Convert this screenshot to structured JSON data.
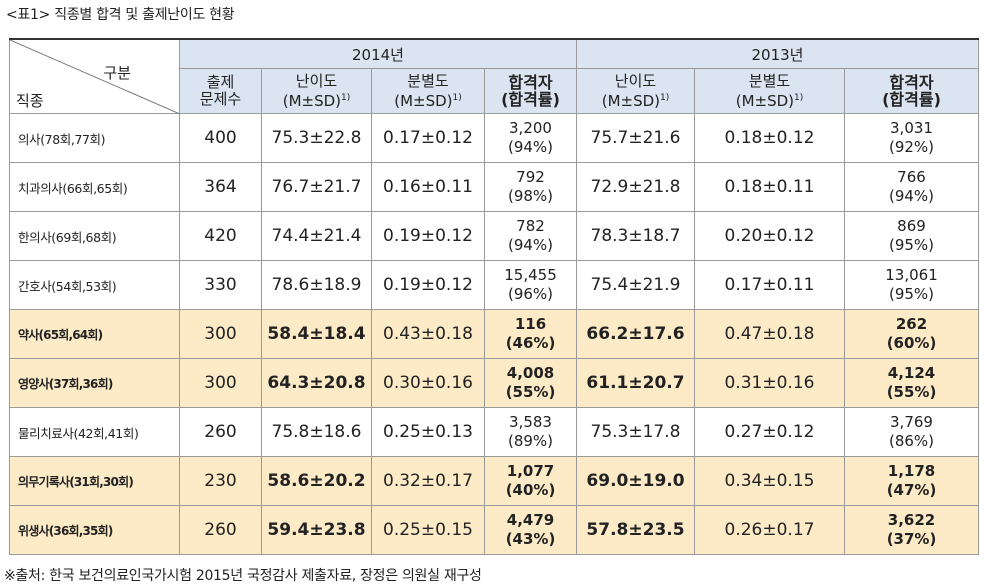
{
  "caption": "<표1> 직종별 합격 및 출제난이도 현황",
  "header": {
    "corner_top": "구분",
    "corner_bottom": "직종",
    "year_2014": "2014년",
    "year_2013": "2013년",
    "count_line1": "출제",
    "count_line2": "문제수",
    "difficulty": "난이도",
    "discrimination": "분별도",
    "msd": "(M±SD)",
    "sup": "1)",
    "pass_line1": "합격자",
    "pass_line2": "(합격률)"
  },
  "rows": [
    {
      "name": "의사(78회,77회)",
      "count": "400",
      "diff14": "75.3±22.8",
      "disc14": "0.17±0.12",
      "pass14": "3,200",
      "rate14": "(94%)",
      "diff13": "75.7±21.6",
      "disc13": "0.18±0.12",
      "pass13": "3,031",
      "rate13": "(92%)"
    },
    {
      "name": "치과의사(66회,65회)",
      "count": "364",
      "diff14": "76.7±21.7",
      "disc14": "0.16±0.11",
      "pass14": "792",
      "rate14": "(98%)",
      "diff13": "72.9±21.8",
      "disc13": "0.18±0.11",
      "pass13": "766",
      "rate13": "(94%)"
    },
    {
      "name": "한의사(69회,68회)",
      "count": "420",
      "diff14": "74.4±21.4",
      "disc14": "0.19±0.12",
      "pass14": "782",
      "rate14": "(94%)",
      "diff13": "78.3±18.7",
      "disc13": "0.20±0.12",
      "pass13": "869",
      "rate13": "(95%)"
    },
    {
      "name": "간호사(54회,53회)",
      "count": "330",
      "diff14": "78.6±18.9",
      "disc14": "0.19±0.12",
      "pass14": "15,455",
      "rate14": "(96%)",
      "diff13": "75.4±21.9",
      "disc13": "0.17±0.11",
      "pass13": "13,061",
      "rate13": "(95%)"
    },
    {
      "name": "약사(65회,64회)",
      "count": "300",
      "diff14": "58.4±18.4",
      "disc14": "0.43±0.18",
      "pass14": "116",
      "rate14": "(46%)",
      "diff13": "66.2±17.6",
      "disc13": "0.47±0.18",
      "pass13": "262",
      "rate13": "(60%)"
    },
    {
      "name": "영양사(37회,36회)",
      "count": "300",
      "diff14": "64.3±20.8",
      "disc14": "0.30±0.16",
      "pass14": "4,008",
      "rate14": "(55%)",
      "diff13": "61.1±20.7",
      "disc13": "0.31±0.16",
      "pass13": "4,124",
      "rate13": "(55%)"
    },
    {
      "name": "물리치료사(42회,41회)",
      "count": "260",
      "diff14": "75.8±18.6",
      "disc14": "0.25±0.13",
      "pass14": "3,583",
      "rate14": "(89%)",
      "diff13": "75.3±17.8",
      "disc13": "0.27±0.12",
      "pass13": "3,769",
      "rate13": "(86%)"
    },
    {
      "name": "의무기록사(31회,30회)",
      "count": "230",
      "diff14": "58.6±20.2",
      "disc14": "0.32±0.17",
      "pass14": "1,077",
      "rate14": "(40%)",
      "diff13": "69.0±19.0",
      "disc13": "0.34±0.15",
      "pass13": "1,178",
      "rate13": "(47%)"
    },
    {
      "name": "위생사(36회,35회)",
      "count": "260",
      "diff14": "59.4±23.8",
      "disc14": "0.25±0.15",
      "pass14": "4,479",
      "rate14": "(43%)",
      "diff13": "57.8±23.5",
      "disc13": "0.26±0.17",
      "pass13": "3,622",
      "rate13": "(37%)"
    }
  ],
  "highlight_color": "#fdebc8",
  "header_color": "#dbe5f1",
  "footnote": "※출처: 한국 보건의료인국가시험 2015년 국정감사 제출자료, 장정은 의원실 재구성"
}
